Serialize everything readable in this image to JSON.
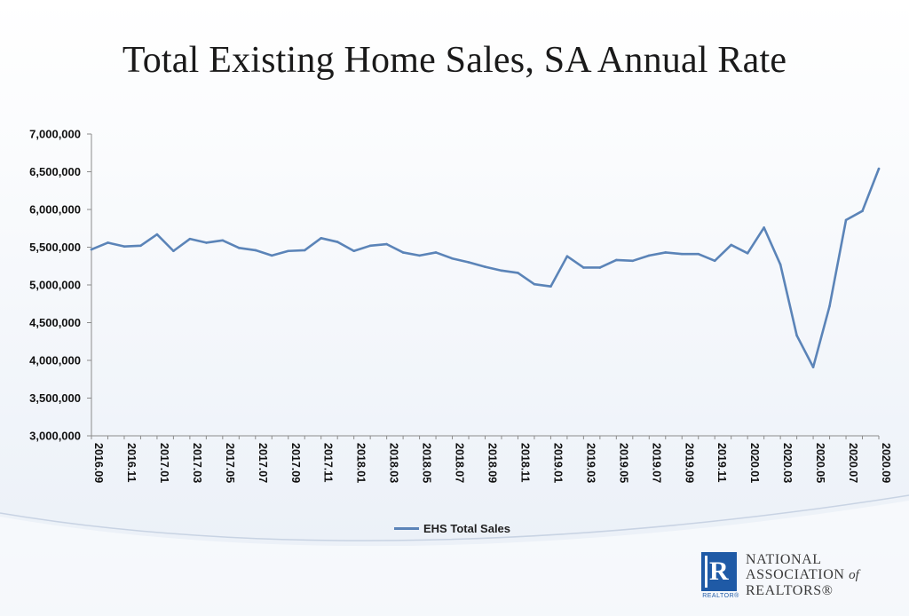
{
  "chart_data": {
    "type": "line",
    "title": "Total Existing Home Sales, SA Annual Rate",
    "xlabel": "",
    "ylabel": "",
    "ylim": [
      3000000,
      7000000
    ],
    "y_ticks": [
      3000000,
      3500000,
      4000000,
      4500000,
      5000000,
      5500000,
      6000000,
      6500000,
      7000000
    ],
    "y_tick_labels": [
      "3,000,000",
      "3,500,000",
      "4,000,000",
      "4,500,000",
      "5,000,000",
      "5,500,000",
      "6,000,000",
      "6,500,000",
      "7,000,000"
    ],
    "x": [
      "2016.09",
      "2016.10",
      "2016.11",
      "2016.12",
      "2017.01",
      "2017.02",
      "2017.03",
      "2017.04",
      "2017.05",
      "2017.06",
      "2017.07",
      "2017.08",
      "2017.09",
      "2017.10",
      "2017.11",
      "2017.12",
      "2018.01",
      "2018.02",
      "2018.03",
      "2018.04",
      "2018.05",
      "2018.06",
      "2018.07",
      "2018.08",
      "2018.09",
      "2018.10",
      "2018.11",
      "2018.12",
      "2019.01",
      "2019.02",
      "2019.03",
      "2019.04",
      "2019.05",
      "2019.06",
      "2019.07",
      "2019.08",
      "2019.09",
      "2019.10",
      "2019.11",
      "2019.12",
      "2020.01",
      "2020.02",
      "2020.03",
      "2020.04",
      "2020.05",
      "2020.06",
      "2020.07",
      "2020.08",
      "2020.09"
    ],
    "x_tick_labels": [
      "2016.09",
      "2016.11",
      "2017.01",
      "2017.03",
      "2017.05",
      "2017.07",
      "2017.09",
      "2017.11",
      "2018.01",
      "2018.03",
      "2018.05",
      "2018.07",
      "2018.09",
      "2018.11",
      "2019.01",
      "2019.03",
      "2019.05",
      "2019.07",
      "2019.09",
      "2019.11",
      "2020.01",
      "2020.03",
      "2020.05",
      "2020.07",
      "2020.09"
    ],
    "series": [
      {
        "name": "EHS Total Sales",
        "color": "#5b84b8",
        "values": [
          5470000,
          5560000,
          5510000,
          5520000,
          5670000,
          5450000,
          5610000,
          5560000,
          5590000,
          5490000,
          5460000,
          5390000,
          5450000,
          5460000,
          5620000,
          5570000,
          5450000,
          5520000,
          5540000,
          5430000,
          5390000,
          5430000,
          5350000,
          5300000,
          5240000,
          5190000,
          5160000,
          5010000,
          4980000,
          5380000,
          5230000,
          5230000,
          5330000,
          5320000,
          5390000,
          5430000,
          5410000,
          5410000,
          5320000,
          5530000,
          5420000,
          5760000,
          5270000,
          4330000,
          3910000,
          4720000,
          5860000,
          5980000,
          6540000
        ]
      }
    ],
    "grid": false,
    "legend_position": "bottom"
  },
  "legend": {
    "label": "EHS Total Sales"
  },
  "logo": {
    "line1": "NATIONAL",
    "line2": "ASSOCIATION",
    "of": "of",
    "line3": "REALTORS®",
    "mark_letter": "R",
    "mark_caption": "REALTOR®",
    "brand_color": "#1f5aa6"
  }
}
